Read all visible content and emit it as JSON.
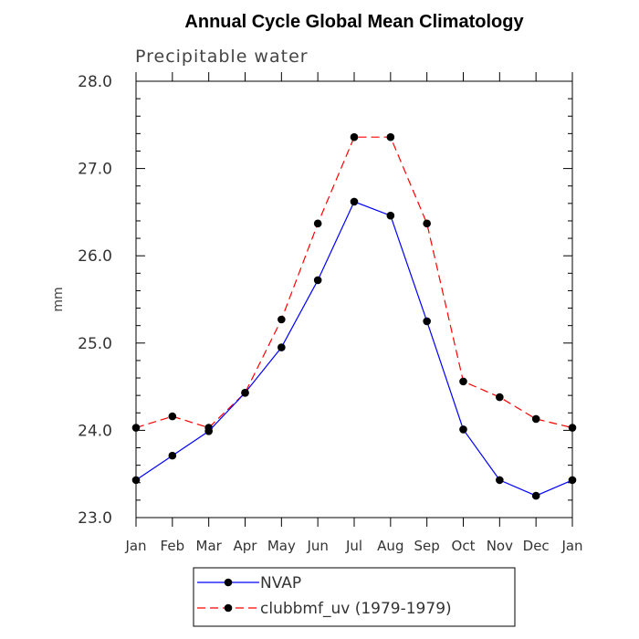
{
  "chart_data": {
    "type": "line",
    "title": "Annual Cycle Global Mean Climatology",
    "subtitle": "Precipitable water",
    "xlabel": "",
    "ylabel": "mm",
    "ylim": [
      23.0,
      28.0
    ],
    "yticks": [
      "23.0",
      "24.0",
      "25.0",
      "26.0",
      "27.0",
      "28.0"
    ],
    "categories": [
      "Jan",
      "Feb",
      "Mar",
      "Apr",
      "May",
      "Jun",
      "Jul",
      "Aug",
      "Sep",
      "Oct",
      "Nov",
      "Dec",
      "Jan"
    ],
    "grid": false,
    "legend_position": "bottom-center",
    "series": [
      {
        "name": "NVAP",
        "color": "#0000ff",
        "dash": "solid",
        "marker": "filled-circle",
        "values": [
          23.43,
          23.71,
          23.99,
          24.43,
          24.95,
          25.72,
          26.62,
          26.46,
          25.25,
          24.01,
          23.43,
          23.25,
          23.43
        ]
      },
      {
        "name": "clubbmf_uv (1979-1979)",
        "color": "#ff0000",
        "dash": "dashed",
        "marker": "filled-circle",
        "values": [
          24.03,
          24.16,
          24.03,
          24.43,
          25.27,
          26.37,
          27.36,
          27.36,
          26.37,
          24.56,
          24.38,
          24.13,
          24.03
        ]
      }
    ]
  }
}
